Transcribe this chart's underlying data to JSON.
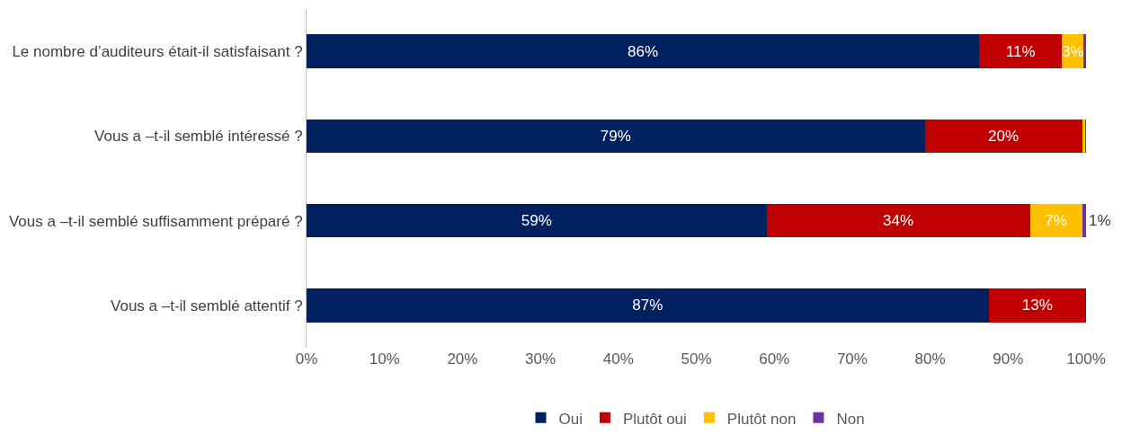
{
  "chart_data": {
    "type": "bar",
    "orientation": "horizontal",
    "stacked": true,
    "categories": [
      "Le nombre d’auditeurs était-il satisfaisant ?",
      "Vous a –t-il semblé intéressé ?",
      "Vous a –t-il semblé suffisamment préparé ?",
      "Vous a –t-il semblé attentif ?"
    ],
    "series": [
      {
        "name": "Oui",
        "color": "#002060",
        "values": [
          86.3,
          79.3,
          59.0,
          87.5
        ],
        "value_labels": [
          "86%",
          "79%",
          "59%",
          "87%"
        ]
      },
      {
        "name": "Plutôt oui",
        "color": "#c00000",
        "values": [
          10.6,
          20.2,
          33.8,
          12.5
        ],
        "value_labels": [
          "11%",
          "20%",
          "34%",
          "13%"
        ]
      },
      {
        "name": "Plutôt non",
        "color": "#ffc000",
        "values": [
          2.8,
          0.4,
          6.7,
          null
        ],
        "value_labels": [
          "3%",
          null,
          "7%",
          null
        ]
      },
      {
        "name": "Non",
        "color": "#7030a0",
        "values": [
          0.3,
          0.1,
          0.5,
          null
        ],
        "value_labels": [
          null,
          null,
          "1%",
          null
        ]
      }
    ],
    "xlim": [
      0,
      100
    ],
    "xticks": [
      {
        "value": 0,
        "label": "0%"
      },
      {
        "value": 10,
        "label": "10%"
      },
      {
        "value": 20,
        "label": "20%"
      },
      {
        "value": 30,
        "label": "30%"
      },
      {
        "value": 40,
        "label": "40%"
      },
      {
        "value": 50,
        "label": "50%"
      },
      {
        "value": 60,
        "label": "60%"
      },
      {
        "value": 70,
        "label": "70%"
      },
      {
        "value": 80,
        "label": "80%"
      },
      {
        "value": 90,
        "label": "90%"
      },
      {
        "value": 100,
        "label": "100%"
      }
    ],
    "legend": "bottom"
  }
}
